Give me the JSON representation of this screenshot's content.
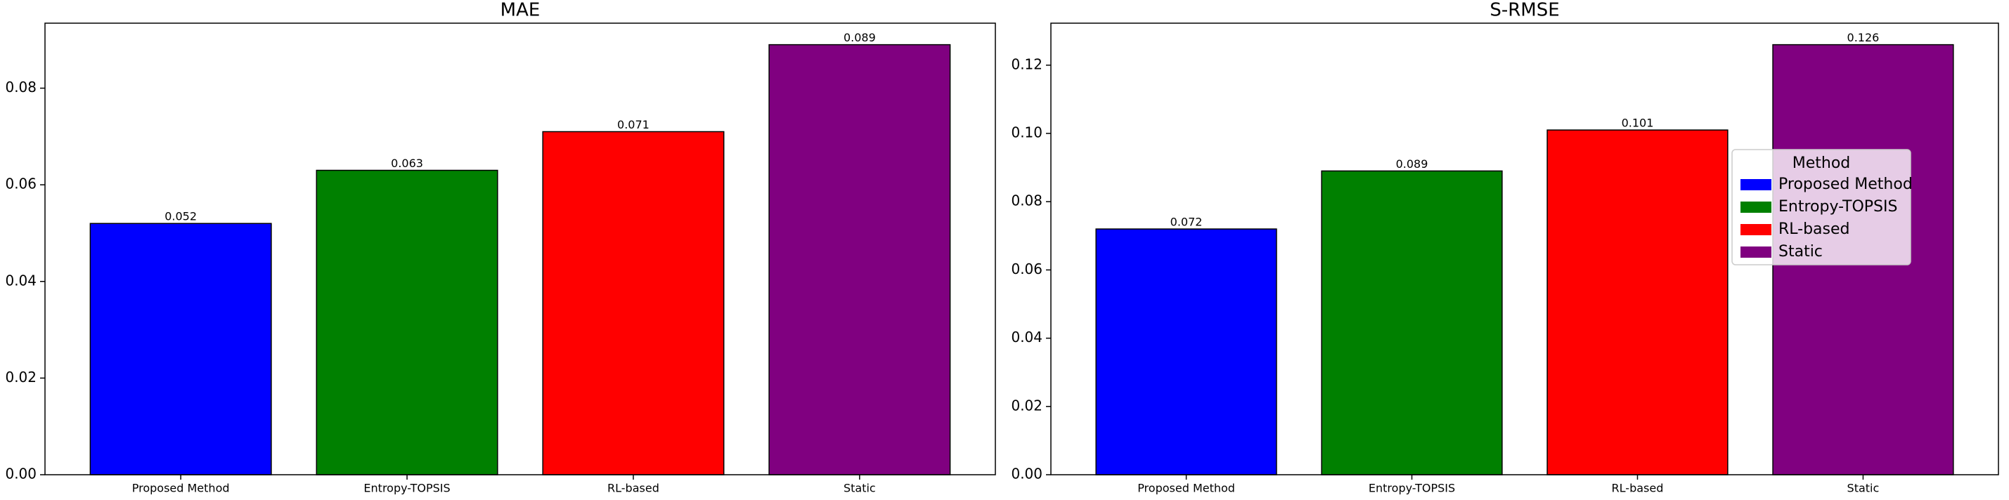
{
  "chart_data": [
    {
      "type": "bar",
      "title": "MAE",
      "categories": [
        "Proposed Method",
        "Entropy-TOPSIS",
        "RL-based",
        "Static"
      ],
      "values": [
        0.052,
        0.063,
        0.071,
        0.089
      ],
      "colors": [
        "#0000ff",
        "#008000",
        "#ff0000",
        "#800080"
      ],
      "ylim": [
        0,
        0.09345
      ],
      "yticks": [
        {
          "value": 0,
          "label": "0.00"
        },
        0.02,
        0.04,
        0.06,
        0.08
      ],
      "data_labels": true
    },
    {
      "type": "bar",
      "title": "S-RMSE",
      "categories": [
        "Proposed Method",
        "Entropy-TOPSIS",
        "RL-based",
        "Static"
      ],
      "values": [
        0.072,
        0.089,
        0.101,
        0.126
      ],
      "colors": [
        "#0000ff",
        "#008000",
        "#ff0000",
        "#800080"
      ],
      "ylim": [
        0,
        0.1323
      ],
      "yticks": [
        {
          "value": 0,
          "label": "0.00"
        },
        0.02,
        0.04,
        0.06,
        0.08,
        {
          "value": 0.1,
          "label": "0.10"
        },
        0.12
      ],
      "data_labels": true,
      "legend": {
        "title": "Method",
        "loc": "center right"
      }
    }
  ]
}
